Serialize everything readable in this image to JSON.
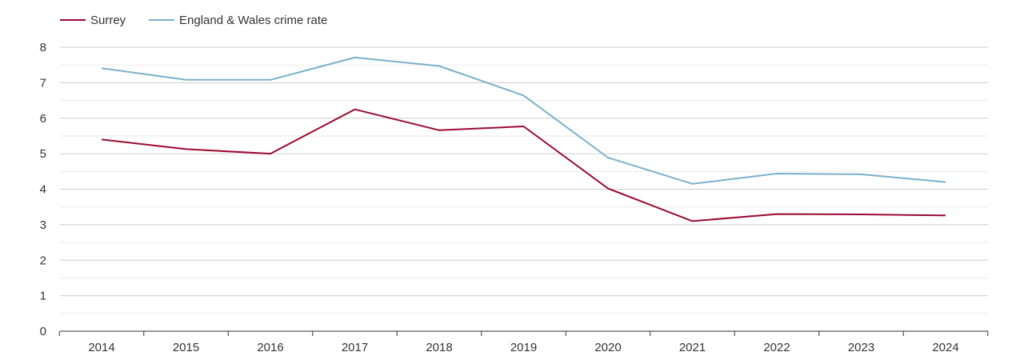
{
  "chart_data": {
    "type": "line",
    "title": "",
    "xlabel": "",
    "ylabel": "",
    "x": [
      "2014",
      "2015",
      "2016",
      "2017",
      "2018",
      "2019",
      "2020",
      "2021",
      "2022",
      "2023",
      "2024"
    ],
    "ylim": [
      0,
      8
    ],
    "y_ticks": [
      "0",
      "1",
      "2",
      "3",
      "4",
      "5",
      "6",
      "7",
      "8"
    ],
    "grid": true,
    "legend_position": "top-left",
    "series": [
      {
        "name": "Surrey",
        "color": "#9b0a30",
        "values": [
          5.4,
          5.13,
          5.0,
          6.25,
          5.66,
          5.77,
          4.02,
          3.1,
          3.3,
          3.29,
          3.26
        ]
      },
      {
        "name": "England & Wales crime rate",
        "color": "#7ab0cc",
        "values": [
          7.41,
          7.08,
          7.08,
          7.71,
          7.47,
          6.64,
          4.89,
          4.15,
          4.44,
          4.42,
          4.2
        ]
      }
    ]
  }
}
